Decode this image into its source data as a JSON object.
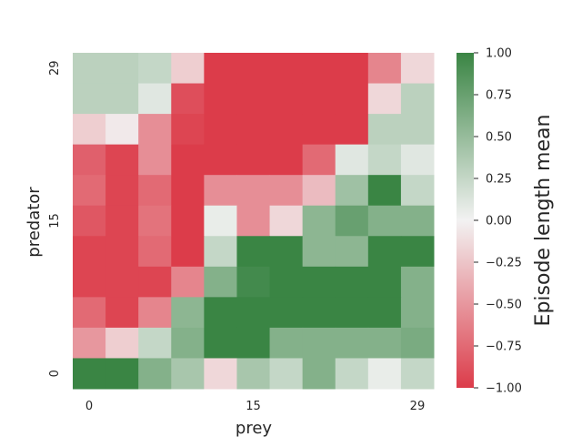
{
  "chart_data": {
    "type": "heatmap",
    "title": "",
    "xlabel": "prey",
    "ylabel": "predator",
    "x_ticks": [
      {
        "label": "0",
        "col": 0
      },
      {
        "label": "15",
        "col": 5
      },
      {
        "label": "29",
        "col": 10
      }
    ],
    "y_ticks": [
      {
        "label": "29",
        "row": 0
      },
      {
        "label": "15",
        "row": 5
      },
      {
        "label": "0",
        "row": 10
      }
    ],
    "colorbar": {
      "label": "Episode length mean",
      "vmin": -1.0,
      "vmax": 1.0,
      "ticks": [
        "1.00",
        "0.75",
        "0.50",
        "0.25",
        "0.00",
        "−0.25",
        "−0.50",
        "−0.75",
        "−1.00"
      ],
      "tick_values": [
        1.0,
        0.75,
        0.5,
        0.25,
        0.0,
        -0.25,
        -0.5,
        -0.75,
        -1.0
      ],
      "color_low": "#dc3c4a",
      "color_mid": "#f2f2f2",
      "color_high": "#3a8544"
    },
    "rows_top_to_bottom": [
      [
        0.3,
        0.3,
        0.25,
        -0.2,
        -1.0,
        -1.0,
        -1.0,
        -1.0,
        -1.0,
        -0.6,
        -0.15
      ],
      [
        0.3,
        0.3,
        0.1,
        -0.9,
        -1.0,
        -1.0,
        -1.0,
        -1.0,
        -1.0,
        -0.15,
        0.3
      ],
      [
        -0.2,
        -0.05,
        -0.55,
        -0.95,
        -1.0,
        -1.0,
        -1.0,
        -1.0,
        -1.0,
        0.3,
        0.3
      ],
      [
        -0.8,
        -0.95,
        -0.55,
        -1.0,
        -1.0,
        -1.0,
        -1.0,
        -0.75,
        0.1,
        0.25,
        0.1
      ],
      [
        -0.75,
        -0.95,
        -0.75,
        -1.0,
        -0.55,
        -0.55,
        -0.55,
        -0.3,
        0.45,
        1.0,
        0.25
      ],
      [
        -0.85,
        -0.95,
        -0.7,
        -1.0,
        0.05,
        -0.55,
        -0.15,
        0.55,
        0.75,
        0.6,
        0.6
      ],
      [
        -0.95,
        -0.95,
        -0.75,
        -1.0,
        0.25,
        1.0,
        1.0,
        0.55,
        0.55,
        1.0,
        1.0
      ],
      [
        -0.95,
        -0.95,
        -0.95,
        -0.6,
        0.6,
        0.95,
        1.0,
        1.0,
        1.0,
        1.0,
        0.6
      ],
      [
        -0.75,
        -0.95,
        -0.6,
        0.55,
        1.0,
        1.0,
        1.0,
        1.0,
        1.0,
        1.0,
        0.6
      ],
      [
        -0.5,
        -0.2,
        0.25,
        0.6,
        1.0,
        1.0,
        0.6,
        0.6,
        0.6,
        0.6,
        0.65
      ],
      [
        1.0,
        1.0,
        0.6,
        0.4,
        -0.15,
        0.4,
        0.25,
        0.6,
        0.25,
        0.05,
        0.25
      ]
    ]
  }
}
